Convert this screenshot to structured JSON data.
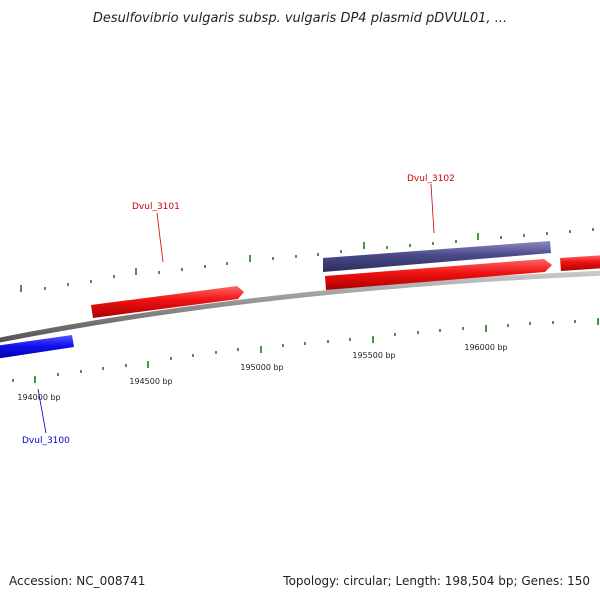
{
  "title": "Desulfovibrio vulgaris subsp. vulgaris DP4 plasmid pDVUL01, ...",
  "footer": {
    "accession": "Accession: NC_008741",
    "summary": "Topology: circular; Length: 198,504 bp; Genes: 150"
  },
  "scale_labels": [
    "194000 bp",
    "194500 bp",
    "195000 bp",
    "195500 bp",
    "196000 bp"
  ],
  "genes": [
    {
      "id": "Dvul_3100",
      "strand": "-",
      "color": "#0000ee"
    },
    {
      "id": "Dvul_3101",
      "strand": "+",
      "color": "#dd0000"
    },
    {
      "id": "Dvul_3102",
      "strand": "-",
      "color": "#dd0000"
    },
    {
      "id": "",
      "strand": "+",
      "color": "#ee0000"
    },
    {
      "id": "",
      "strand": "+",
      "color": "#ee0000"
    }
  ],
  "colors": {
    "forward_gene": "#ee1111",
    "reverse_gene": "#4a4a8a",
    "other_gene": "#1111ee",
    "backbone": "#8c8c8c",
    "tick": "#1a7a1a"
  }
}
